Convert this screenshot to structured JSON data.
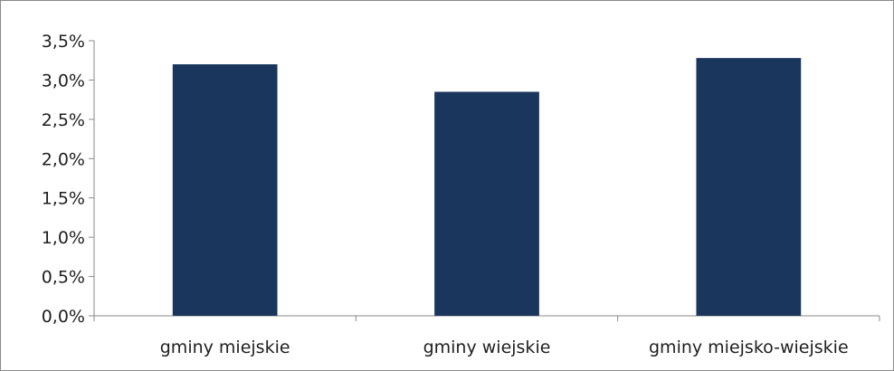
{
  "chart_data": {
    "type": "bar",
    "categories": [
      "gminy miejskie",
      "gminy wiejskie",
      "gminy miejsko-wiejskie"
    ],
    "values": [
      3.2,
      2.85,
      3.28
    ],
    "ylim": [
      0,
      3.5
    ],
    "y_ticks": [
      0,
      0.5,
      1.0,
      1.5,
      2.0,
      2.5,
      3.0,
      3.5
    ],
    "y_tick_labels": [
      "0,0%",
      "0,5%",
      "1,0%",
      "1,5%",
      "2,0%",
      "2,5%",
      "3,0%",
      "3,5%"
    ],
    "grid": false,
    "legend": "none",
    "bar_color": "#1b365d",
    "axis_color": "#8a8a8a"
  }
}
